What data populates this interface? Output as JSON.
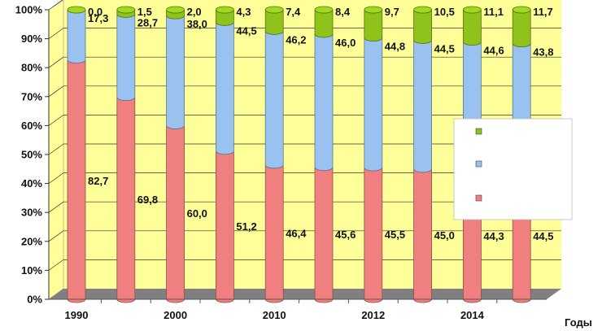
{
  "chart_data": {
    "type": "bar",
    "stacked": true,
    "percent": true,
    "categories": [
      "1990",
      "",
      "2000",
      "",
      "2010",
      "",
      "2012",
      "",
      "2014",
      ""
    ],
    "series": [
      {
        "key": "bottom",
        "color": "#f08080",
        "values": [
          82.7,
          69.8,
          60.0,
          51.2,
          46.4,
          45.6,
          45.5,
          45.0,
          44.3,
          44.5
        ],
        "labels": [
          "82,7",
          "69,8",
          "60,0",
          "51,2",
          "46,4",
          "45,6",
          "45,5",
          "45,0",
          "44,3",
          "44,5"
        ]
      },
      {
        "key": "middle",
        "color": "#99c2f0",
        "values": [
          17.3,
          28.7,
          38.0,
          44.5,
          46.2,
          46.0,
          44.8,
          44.5,
          44.6,
          43.8
        ],
        "labels": [
          "17,3",
          "28,7",
          "38,0",
          "44,5",
          "46,2",
          "46,0",
          "44,8",
          "44,5",
          "44,6",
          "43,8"
        ]
      },
      {
        "key": "top",
        "color": "#8fc21a",
        "values": [
          0.0,
          1.5,
          2.0,
          4.3,
          7.4,
          8.4,
          9.7,
          10.5,
          11.1,
          11.7
        ],
        "labels": [
          "0,0",
          "1,5",
          "2,0",
          "4,3",
          "7,4",
          "8,4",
          "9,7",
          "10,5",
          "11,1",
          "11,7"
        ]
      }
    ],
    "yticks": [
      "0%",
      "10%",
      "20%",
      "30%",
      "40%",
      "50%",
      "60%",
      "70%",
      "80%",
      "90%",
      "100%"
    ],
    "ylim": [
      0,
      100
    ],
    "xlabel": "Годы",
    "background": "#ffff99",
    "floor_color": "#808080",
    "legend": {
      "position": "right",
      "markers": [
        "#8fc21a",
        "#99c2f0",
        "#f08080"
      ]
    }
  }
}
